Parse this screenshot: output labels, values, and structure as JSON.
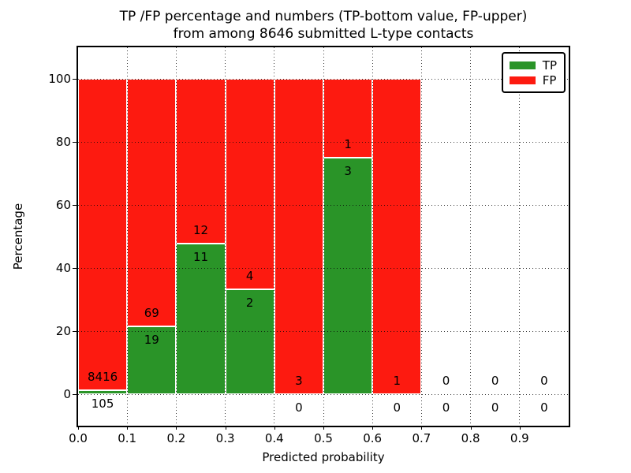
{
  "title_lines": [
    "TP /FP percentage and numbers (TP-bottom value, FP-upper)",
    "from among 8646 submitted L-type contacts"
  ],
  "chart_data": {
    "type": "bar",
    "stacked": true,
    "title": "TP /FP percentage and numbers (TP-bottom value, FP-upper) from among 8646 submitted L-type contacts",
    "xlabel": "Predicted probability",
    "ylabel": "Percentage",
    "x_tick_labels": [
      "0.0",
      "0.1",
      "0.2",
      "0.3",
      "0.4",
      "0.5",
      "0.6",
      "0.7",
      "0.8",
      "0.9"
    ],
    "y_tick_labels": [
      "0",
      "20",
      "40",
      "60",
      "80",
      "100"
    ],
    "y_tick_values": [
      0,
      20,
      40,
      60,
      80,
      100
    ],
    "xlim": [
      0.0,
      1.0
    ],
    "ylim": [
      -10,
      110
    ],
    "grid": true,
    "grid_style": "dotted",
    "legend_position": "upper-right",
    "legend": [
      {
        "label": "TP",
        "color": "#2a9428"
      },
      {
        "label": "FP",
        "color": "#fd1a10"
      }
    ],
    "series": [
      {
        "name": "TP",
        "values": [
          105,
          19,
          11,
          2,
          0,
          3,
          0,
          0,
          0,
          0
        ]
      },
      {
        "name": "FP",
        "values": [
          8416,
          69,
          12,
          4,
          3,
          1,
          1,
          0,
          0,
          0
        ]
      }
    ],
    "bins": [
      {
        "range": [
          0.0,
          0.1
        ],
        "tp": 105,
        "fp": 8416,
        "tp_pct": 1.23
      },
      {
        "range": [
          0.1,
          0.2
        ],
        "tp": 19,
        "fp": 69,
        "tp_pct": 21.59
      },
      {
        "range": [
          0.2,
          0.3
        ],
        "tp": 11,
        "fp": 12,
        "tp_pct": 47.83
      },
      {
        "range": [
          0.3,
          0.4
        ],
        "tp": 2,
        "fp": 4,
        "tp_pct": 33.33
      },
      {
        "range": [
          0.4,
          0.5
        ],
        "tp": 0,
        "fp": 3,
        "tp_pct": 0
      },
      {
        "range": [
          0.5,
          0.6
        ],
        "tp": 3,
        "fp": 1,
        "tp_pct": 75.0
      },
      {
        "range": [
          0.6,
          0.7
        ],
        "tp": 0,
        "fp": 1,
        "tp_pct": 0
      },
      {
        "range": [
          0.7,
          0.8
        ],
        "tp": 0,
        "fp": 0,
        "tp_pct": 0
      },
      {
        "range": [
          0.8,
          0.9
        ],
        "tp": 0,
        "fp": 0,
        "tp_pct": 0
      },
      {
        "range": [
          0.9,
          1.0
        ],
        "tp": 0,
        "fp": 0,
        "tp_pct": 0
      }
    ]
  },
  "colors": {
    "tp": "#2a9428",
    "fp": "#fd1a10",
    "frame": "#000000",
    "grid": "#0a0a0a",
    "background": "#ffffff",
    "text": "#000000"
  }
}
